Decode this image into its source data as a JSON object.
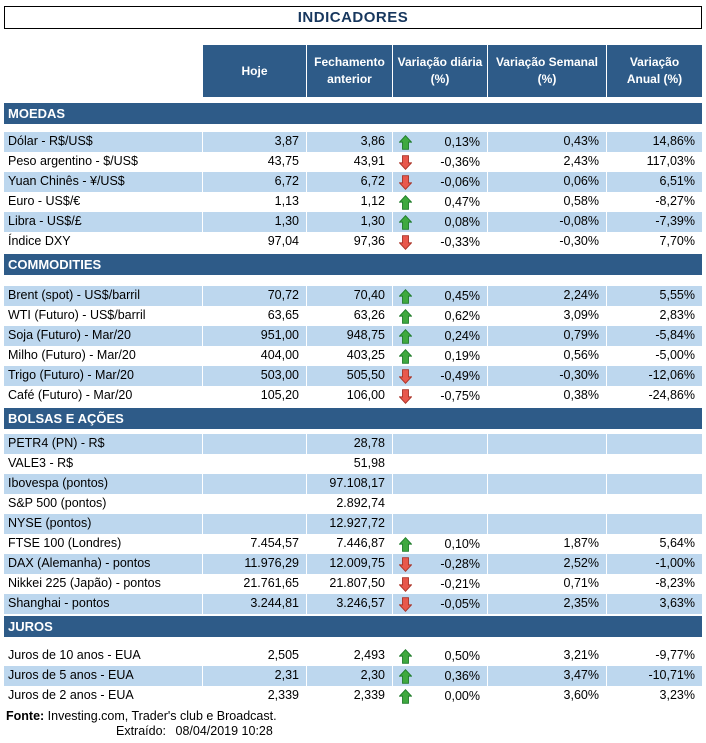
{
  "chart_data": {
    "type": "table",
    "title": "INDICADORES",
    "headers": [
      "Hoje",
      "Fechamento\nanterior",
      "Variação diária\n(%)",
      "Variação Semanal\n(%)",
      "Variação\nAnual (%)"
    ],
    "sections": [
      {
        "id": "moedas",
        "name": "MOEDAS",
        "rows": [
          {
            "label": "Dólar - R$/US$",
            "hoje": "3,87",
            "fechamento": "3,86",
            "trend": "up",
            "var_diaria": "0,13%",
            "var_semanal": "0,43%",
            "var_anual": "14,86%"
          },
          {
            "label": "Peso argentino - $/US$",
            "hoje": "43,75",
            "fechamento": "43,91",
            "trend": "down",
            "var_diaria": "-0,36%",
            "var_semanal": "2,43%",
            "var_anual": "117,03%"
          },
          {
            "label": "Yuan Chinês - ¥/US$",
            "hoje": "6,72",
            "fechamento": "6,72",
            "trend": "down",
            "var_diaria": "-0,06%",
            "var_semanal": "0,06%",
            "var_anual": "6,51%"
          },
          {
            "label": "Euro - US$/€",
            "hoje": "1,13",
            "fechamento": "1,12",
            "trend": "up",
            "var_diaria": "0,47%",
            "var_semanal": "0,58%",
            "var_anual": "-8,27%"
          },
          {
            "label": "Libra - US$/£",
            "hoje": "1,30",
            "fechamento": "1,30",
            "trend": "up",
            "var_diaria": "0,08%",
            "var_semanal": "-0,08%",
            "var_anual": "-7,39%"
          },
          {
            "label": "Índice DXY",
            "hoje": "97,04",
            "fechamento": "97,36",
            "trend": "down",
            "var_diaria": "-0,33%",
            "var_semanal": "-0,30%",
            "var_anual": "7,70%"
          }
        ]
      },
      {
        "id": "commodities",
        "name": "COMMODITIES",
        "rows": [
          {
            "label": "Brent (spot) - US$/barril",
            "hoje": "70,72",
            "fechamento": "70,40",
            "trend": "up",
            "var_diaria": "0,45%",
            "var_semanal": "2,24%",
            "var_anual": "5,55%"
          },
          {
            "label": "WTI (Futuro) - US$/barril",
            "hoje": "63,65",
            "fechamento": "63,26",
            "trend": "up",
            "var_diaria": "0,62%",
            "var_semanal": "3,09%",
            "var_anual": "2,83%"
          },
          {
            "label": "Soja (Futuro) - Mar/20",
            "hoje": "951,00",
            "fechamento": "948,75",
            "trend": "up",
            "var_diaria": "0,24%",
            "var_semanal": "0,79%",
            "var_anual": "-5,84%"
          },
          {
            "label": "Milho (Futuro) - Mar/20",
            "hoje": "404,00",
            "fechamento": "403,25",
            "trend": "up",
            "var_diaria": "0,19%",
            "var_semanal": "0,56%",
            "var_anual": "-5,00%"
          },
          {
            "label": "Trigo (Futuro) - Mar/20",
            "hoje": "503,00",
            "fechamento": "505,50",
            "trend": "down",
            "var_diaria": "-0,49%",
            "var_semanal": "-0,30%",
            "var_anual": "-12,06%"
          },
          {
            "label": "Café (Futuro) - Mar/20",
            "hoje": "105,20",
            "fechamento": "106,00",
            "trend": "down",
            "var_diaria": "-0,75%",
            "var_semanal": "0,38%",
            "var_anual": "-24,86%"
          }
        ]
      },
      {
        "id": "bolsas-e-acoes",
        "name": "BOLSAS E AÇÕES",
        "rows": [
          {
            "label": "PETR4 (PN) - R$",
            "hoje": "",
            "fechamento": "28,78",
            "trend": "none",
            "var_diaria": "",
            "var_semanal": "",
            "var_anual": ""
          },
          {
            "label": "VALE3 - R$",
            "hoje": "",
            "fechamento": "51,98",
            "trend": "none",
            "var_diaria": "",
            "var_semanal": "",
            "var_anual": ""
          },
          {
            "label": "Ibovespa (pontos)",
            "hoje": "",
            "fechamento": "97.108,17",
            "trend": "none",
            "var_diaria": "",
            "var_semanal": "",
            "var_anual": ""
          },
          {
            "label": "S&P 500 (pontos)",
            "hoje": "",
            "fechamento": "2.892,74",
            "trend": "none",
            "var_diaria": "",
            "var_semanal": "",
            "var_anual": ""
          },
          {
            "label": "NYSE (pontos)",
            "hoje": "",
            "fechamento": "12.927,72",
            "trend": "none",
            "var_diaria": "",
            "var_semanal": "",
            "var_anual": ""
          },
          {
            "label": "FTSE 100 (Londres)",
            "hoje": "7.454,57",
            "fechamento": "7.446,87",
            "trend": "up",
            "var_diaria": "0,10%",
            "var_semanal": "1,87%",
            "var_anual": "5,64%"
          },
          {
            "label": "DAX (Alemanha) - pontos",
            "hoje": "11.976,29",
            "fechamento": "12.009,75",
            "trend": "down",
            "var_diaria": "-0,28%",
            "var_semanal": "2,52%",
            "var_anual": "-1,00%"
          },
          {
            "label": "Nikkei 225 (Japão) - pontos",
            "hoje": "21.761,65",
            "fechamento": "21.807,50",
            "trend": "down",
            "var_diaria": "-0,21%",
            "var_semanal": "0,71%",
            "var_anual": "-8,23%"
          },
          {
            "label": "Shanghai - pontos",
            "hoje": "3.244,81",
            "fechamento": "3.246,57",
            "trend": "down",
            "var_diaria": "-0,05%",
            "var_semanal": "2,35%",
            "var_anual": "3,63%"
          }
        ]
      },
      {
        "id": "juros",
        "name": "JUROS",
        "rows": [
          {
            "label": "Juros de 10 anos - EUA",
            "hoje": "2,505",
            "fechamento": "2,493",
            "trend": "up",
            "var_diaria": "0,50%",
            "var_semanal": "3,21%",
            "var_anual": "-9,77%"
          },
          {
            "label": "Juros de 5 anos - EUA",
            "hoje": "2,31",
            "fechamento": "2,30",
            "trend": "up",
            "var_diaria": "0,36%",
            "var_semanal": "3,47%",
            "var_anual": "-10,71%"
          },
          {
            "label": "Juros de 2 anos - EUA",
            "hoje": "2,339",
            "fechamento": "2,339",
            "trend": "up",
            "var_diaria": "0,00%",
            "var_semanal": "3,60%",
            "var_anual": "3,23%"
          }
        ]
      }
    ]
  },
  "footer": {
    "fonte_label": "Fonte:",
    "fonte_text": "Investing.com, Trader's club e Broadcast.",
    "extraido_label": "Extraído:",
    "extraido_value": "08/04/2019 10:28"
  },
  "colors": {
    "header_blue": "#2E5B88",
    "band_blue": "#BDD7EE",
    "title_text": "#17375E",
    "up_green": "#3FA93F",
    "up_green_dark": "#1E7B2A",
    "down_red": "#E8584C",
    "down_red_dark": "#A93226"
  }
}
